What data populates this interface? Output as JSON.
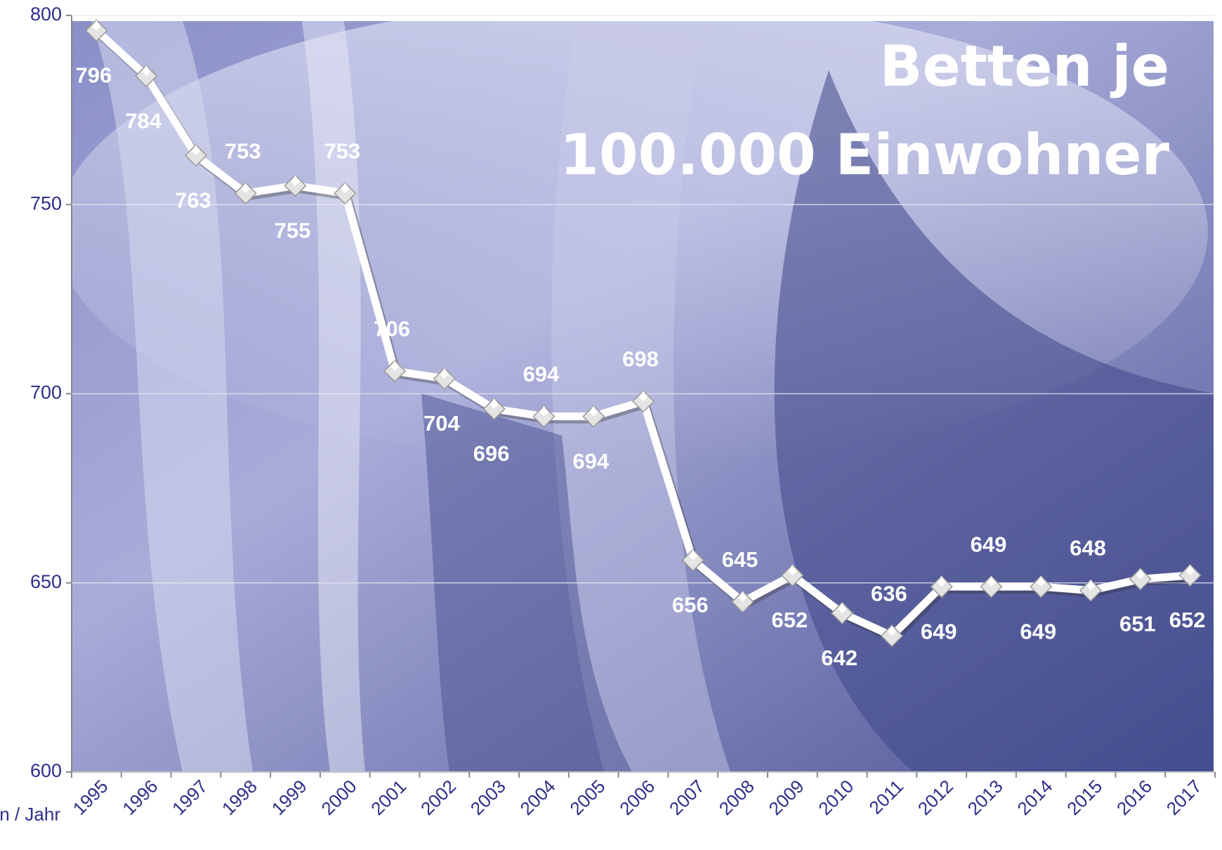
{
  "chart_data": {
    "type": "line",
    "title": [
      "Betten je",
      "100.000 Einwohner"
    ],
    "x_label": "en / Jahr",
    "categories": [
      "1995",
      "1996",
      "1997",
      "1998",
      "1999",
      "2000",
      "2001",
      "2002",
      "2003",
      "2004",
      "2005",
      "2006",
      "2007",
      "2008",
      "2009",
      "2010",
      "2011",
      "2012",
      "2013",
      "2014",
      "2015",
      "2016",
      "2017"
    ],
    "series": [
      {
        "name": "Betten je 100.000 Einwohner",
        "color": "#ffffff",
        "values": [
          796,
          784,
          763,
          753,
          755,
          753,
          706,
          704,
          696,
          694,
          694,
          698,
          656,
          645,
          652,
          642,
          636,
          649,
          649,
          649,
          648,
          651,
          652
        ]
      }
    ],
    "ylim": [
      600,
      800
    ],
    "yticks": [
      600,
      650,
      700,
      750,
      800
    ],
    "grid": true
  }
}
